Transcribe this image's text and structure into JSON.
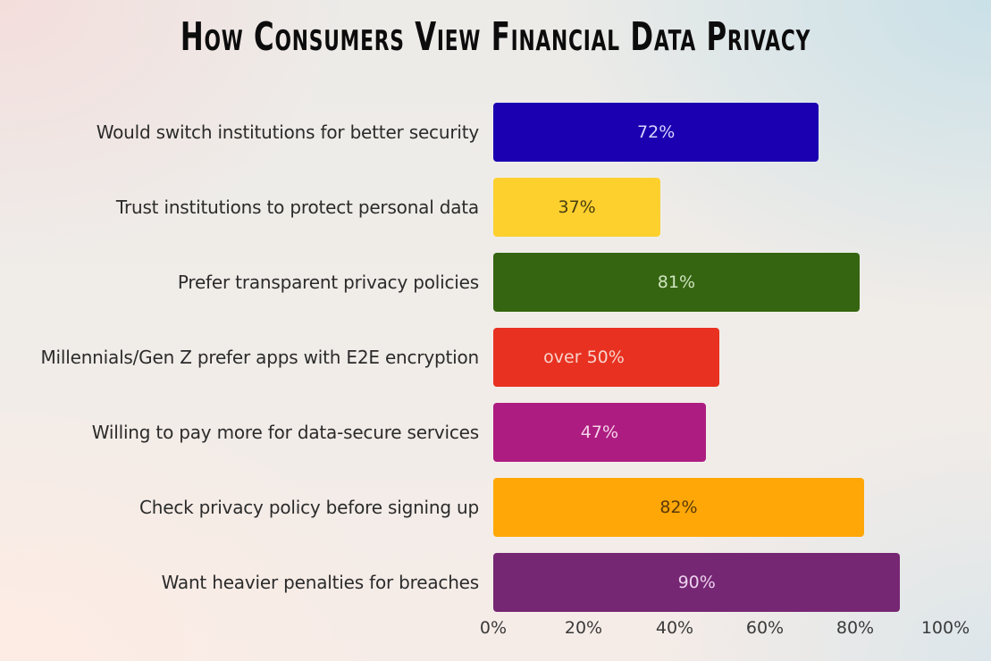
{
  "title": "How Consumers View Financial Data Privacy",
  "chart_data": {
    "type": "bar",
    "orientation": "horizontal",
    "title": "How Consumers View Financial Data Privacy",
    "xlabel": "",
    "ylabel": "",
    "xlim": [
      0,
      100
    ],
    "x_ticks": [
      "0%",
      "20%",
      "40%",
      "60%",
      "80%",
      "100%"
    ],
    "grid": false,
    "legend": "none",
    "categories": [
      "Would switch institutions for better security",
      "Trust institutions to protect personal data",
      "Prefer transparent privacy policies",
      "Millennials/Gen Z prefer apps with E2E encryption",
      "Willing to pay more for data-secure services",
      "Check privacy policy before signing up",
      "Want heavier penalties for breaches"
    ],
    "values": [
      72,
      37,
      81,
      50,
      47,
      82,
      90
    ],
    "data_labels": [
      "72%",
      "37%",
      "81%",
      "over 50%",
      "47%",
      "82%",
      "90%"
    ],
    "colors": [
      "#1a00b0",
      "#fdd02e",
      "#356511",
      "#e83120",
      "#ad1c80",
      "#fea707",
      "#762773"
    ]
  },
  "bars": [
    {
      "label": "Would switch institutions for better security",
      "value_text": "72%",
      "color": "#1a00b0",
      "text_color": "#d9d4ff"
    },
    {
      "label": "Trust institutions to protect personal data",
      "value_text": "37%",
      "color": "#fdd02e",
      "text_color": "#4a3f10"
    },
    {
      "label": "Prefer transparent privacy policies",
      "value_text": "81%",
      "color": "#356511",
      "text_color": "#cfe3bf"
    },
    {
      "label": "Millennials/Gen Z prefer apps with E2E encryption",
      "value_text": "over 50%",
      "color": "#e83120",
      "text_color": "#f8d3cc"
    },
    {
      "label": "Willing to pay more for data-secure services",
      "value_text": "47%",
      "color": "#ad1c80",
      "text_color": "#f5d3ea"
    },
    {
      "label": "Check privacy policy before signing up",
      "value_text": "82%",
      "color": "#fea707",
      "text_color": "#5a3a08"
    },
    {
      "label": "Want heavier penalties for breaches",
      "value_text": "90%",
      "color": "#762773",
      "text_color": "#ecd2ef"
    }
  ],
  "axis": {
    "ticks": [
      "0%",
      "20%",
      "40%",
      "60%",
      "80%",
      "100%"
    ]
  }
}
